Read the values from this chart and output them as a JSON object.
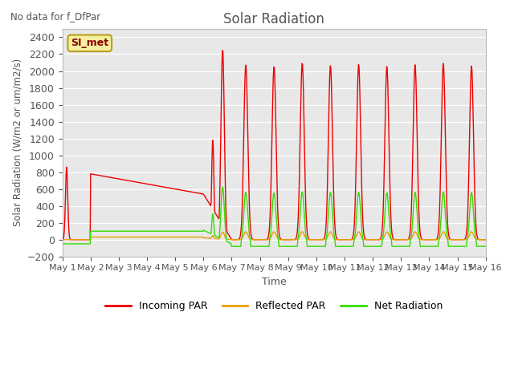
{
  "title": "Solar Radiation",
  "subtitle": "No data for f_DfPar",
  "ylabel": "Solar Radiation (W/m2 or um/m2/s)",
  "xlabel": "Time",
  "ylim": [
    -200,
    2500
  ],
  "yticks": [
    -200,
    0,
    200,
    400,
    600,
    800,
    1000,
    1200,
    1400,
    1600,
    1800,
    2000,
    2200,
    2400
  ],
  "legend_box_label": "SI_met",
  "legend_box_color": "#f5f0a0",
  "legend_box_edge": "#b8a020",
  "bg_color": "#e8e8e8",
  "line_colors": {
    "incoming": "#ee0000",
    "reflected": "#e8a000",
    "net": "#33dd00"
  },
  "legend_labels": [
    "Incoming PAR",
    "Reflected PAR",
    "Net Radiation"
  ],
  "xticklabels": [
    "May 1",
    "May 2",
    "May 3",
    "May 4",
    "May 5",
    "May 6",
    "May 7",
    "May 8",
    "May 9",
    "May 10",
    "May 11",
    "May 12",
    "May 13",
    "May 14",
    "May 15",
    "May 16"
  ]
}
